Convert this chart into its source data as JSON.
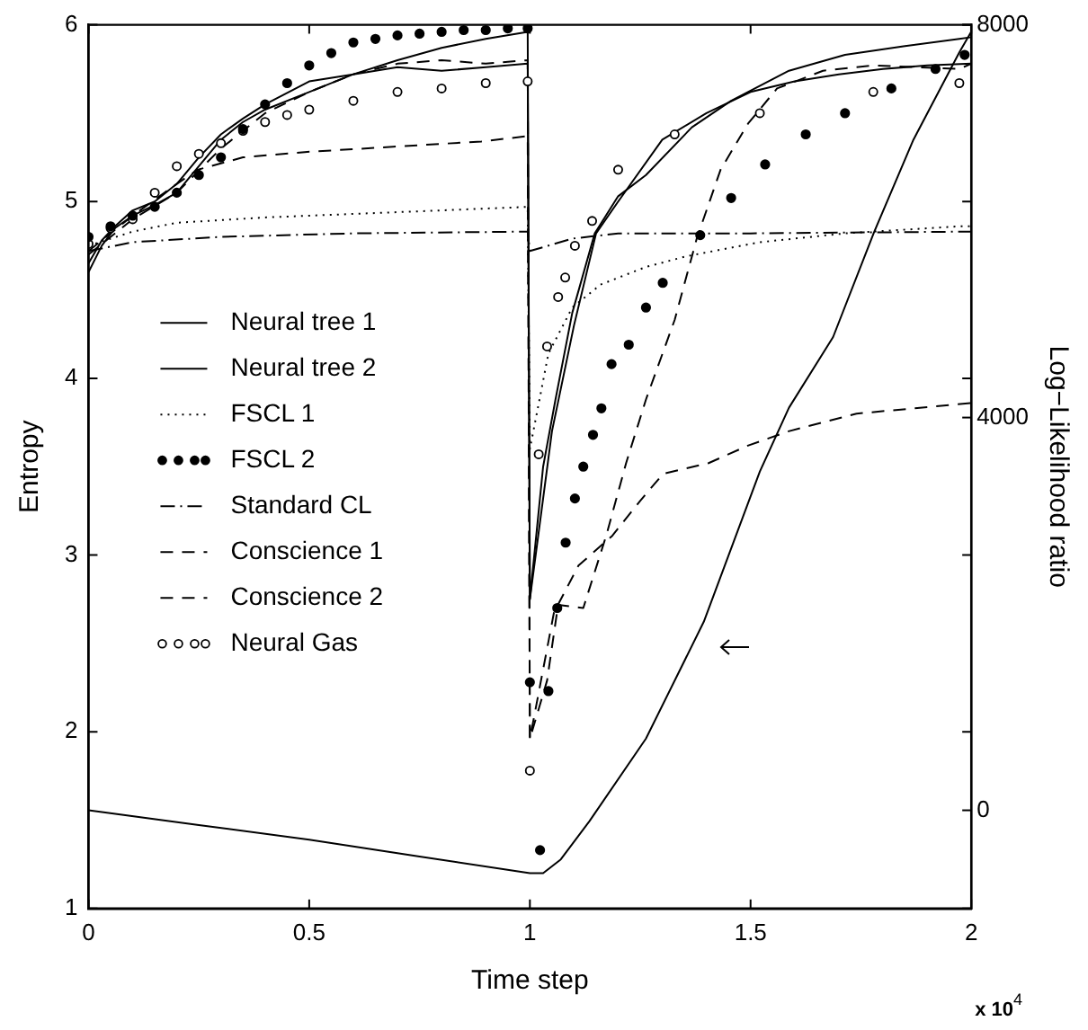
{
  "chart_data": {
    "type": "line",
    "xlabel": "Time step",
    "ylabel": "Entropy",
    "y2label": "Log−Likelihood ratio",
    "xlim": [
      0,
      2
    ],
    "xticks": [
      0,
      0.5,
      1,
      1.5,
      2
    ],
    "ylim": [
      1,
      6
    ],
    "yticks": [
      1,
      2,
      3,
      4,
      5,
      6
    ],
    "y2lim": [
      -1000,
      8000
    ],
    "y2ticks": [
      0,
      4000,
      8000
    ],
    "grid": false,
    "legend": "left",
    "annotations": [
      "x 10$^{4}$"
    ],
    "series": [
      {
        "name": "Neural tree 1",
        "line_style": "solid",
        "color": "#000000",
        "x": [
          0,
          0.03,
          0.06,
          0.1,
          0.15,
          0.2,
          0.25,
          0.3,
          0.35,
          0.4,
          0.5,
          0.6,
          0.7,
          0.8,
          0.9,
          0.995,
          1,
          1.03,
          1.058,
          1.096,
          1.147,
          1.2,
          1.263,
          1.367,
          1.456,
          1.587,
          1.714,
          1.85,
          1.973,
          2
        ],
        "values": [
          4.6,
          4.75,
          4.85,
          4.92,
          4.98,
          5.05,
          5.2,
          5.35,
          5.45,
          5.52,
          5.62,
          5.72,
          5.8,
          5.87,
          5.92,
          5.96,
          2.75,
          3.5,
          3.88,
          4.37,
          4.82,
          5.03,
          5.15,
          5.42,
          5.57,
          5.74,
          5.83,
          5.88,
          5.92,
          5.93
        ]
      },
      {
        "name": "Neural tree 2",
        "line_style": "solid",
        "color": "#000000",
        "x": [
          0,
          0.03,
          0.06,
          0.1,
          0.15,
          0.2,
          0.25,
          0.3,
          0.35,
          0.4,
          0.5,
          0.6,
          0.7,
          0.8,
          0.9,
          0.995,
          1,
          1.05,
          1.1,
          1.15,
          1.2,
          1.3,
          1.4,
          1.5,
          1.6,
          1.7,
          1.8,
          1.9,
          2
        ],
        "values": [
          4.65,
          4.78,
          4.86,
          4.95,
          5.0,
          5.1,
          5.25,
          5.38,
          5.47,
          5.55,
          5.68,
          5.72,
          5.76,
          5.74,
          5.76,
          5.78,
          2.75,
          3.7,
          4.3,
          4.82,
          5.0,
          5.35,
          5.5,
          5.62,
          5.68,
          5.72,
          5.75,
          5.77,
          5.78
        ]
      },
      {
        "name": "FSCL 1",
        "line_style": "dotted",
        "color": "#000000",
        "x": [
          0,
          0.1,
          0.2,
          0.4,
          0.6,
          0.8,
          0.995,
          1,
          1.042,
          1.096,
          1.16,
          1.263,
          1.354,
          1.521,
          1.714,
          1.973,
          2
        ],
        "values": [
          4.75,
          4.83,
          4.88,
          4.91,
          4.93,
          4.95,
          4.97,
          3.6,
          4.14,
          4.4,
          4.53,
          4.63,
          4.69,
          4.77,
          4.82,
          4.86,
          4.86
        ]
      },
      {
        "name": "FSCL 2",
        "type": "scatter",
        "marker": "circle",
        "color": "#000000",
        "x": [
          0,
          0.05,
          0.1,
          0.15,
          0.2,
          0.25,
          0.3,
          0.35,
          0.4,
          0.45,
          0.5,
          0.55,
          0.6,
          0.65,
          0.7,
          0.75,
          0.8,
          0.85,
          0.9,
          0.95,
          0.995,
          1,
          1.023,
          1.042,
          1.062,
          1.081,
          1.102,
          1.121,
          1.143,
          1.162,
          1.185,
          1.224,
          1.263,
          1.301,
          1.386,
          1.456,
          1.533,
          1.625,
          1.714,
          1.819,
          1.919,
          1.985
        ],
        "values": [
          4.8,
          4.86,
          4.92,
          4.97,
          5.05,
          5.15,
          5.25,
          5.41,
          5.55,
          5.67,
          5.77,
          5.84,
          5.9,
          5.92,
          5.94,
          5.95,
          5.96,
          5.97,
          5.97,
          5.98,
          5.98,
          2.28,
          1.33,
          2.23,
          2.7,
          3.07,
          3.32,
          3.5,
          3.68,
          3.83,
          4.08,
          4.19,
          4.4,
          4.54,
          4.81,
          5.02,
          5.21,
          5.38,
          5.5,
          5.64,
          5.75,
          5.83
        ]
      },
      {
        "name": "Standard CL",
        "line_style": "dashdot",
        "color": "#000000",
        "x": [
          0,
          0.1,
          0.3,
          0.6,
          0.995,
          1,
          1.096,
          1.2,
          1.5,
          2
        ],
        "values": [
          4.72,
          4.77,
          4.8,
          4.82,
          4.83,
          4.72,
          4.79,
          4.82,
          4.82,
          4.83
        ]
      },
      {
        "name": "Conscience 1",
        "line_style": "dashed",
        "color": "#000000",
        "x": [
          0,
          0.1,
          0.2,
          0.247,
          0.35,
          0.49,
          0.69,
          0.89,
          0.995,
          1,
          1.039,
          1.064,
          1.11,
          1.187,
          1.251,
          1.302,
          1.405,
          1.495,
          1.586,
          1.74,
          2
        ],
        "values": [
          4.72,
          4.92,
          5.1,
          5.18,
          5.25,
          5.28,
          5.31,
          5.34,
          5.37,
          1.96,
          2.29,
          2.72,
          2.94,
          3.11,
          3.31,
          3.46,
          3.52,
          3.62,
          3.7,
          3.8,
          3.86
        ]
      },
      {
        "name": "Conscience 2",
        "line_style": "dashed",
        "color": "#000000",
        "x": [
          0,
          0.1,
          0.2,
          0.3,
          0.4,
          0.5,
          0.6,
          0.7,
          0.8,
          0.9,
          0.995,
          1,
          1.058,
          1.121,
          1.173,
          1.218,
          1.263,
          1.328,
          1.378,
          1.432,
          1.494,
          1.56,
          1.664,
          1.778,
          1.973,
          2
        ],
        "values": [
          4.7,
          4.9,
          5.05,
          5.3,
          5.5,
          5.62,
          5.72,
          5.78,
          5.8,
          5.78,
          5.8,
          1.96,
          2.72,
          2.7,
          3.11,
          3.52,
          3.88,
          4.33,
          4.79,
          5.18,
          5.44,
          5.64,
          5.74,
          5.77,
          5.75,
          5.78
        ]
      },
      {
        "name": "Neural Gas",
        "type": "scatter",
        "marker": "circle",
        "color": "#000000",
        "x": [
          0,
          0.05,
          0.1,
          0.15,
          0.2,
          0.25,
          0.3,
          0.35,
          0.4,
          0.45,
          0.5,
          0.6,
          0.7,
          0.8,
          0.9,
          0.995,
          1,
          1.02,
          1.039,
          1.064,
          1.08,
          1.102,
          1.141,
          1.2,
          1.328,
          1.521,
          1.778,
          1.973
        ],
        "values": [
          4.76,
          4.85,
          4.9,
          5.05,
          5.2,
          5.27,
          5.33,
          5.4,
          5.45,
          5.49,
          5.52,
          5.57,
          5.62,
          5.64,
          5.67,
          5.68,
          1.78,
          3.57,
          4.18,
          4.46,
          4.57,
          4.75,
          4.89,
          5.18,
          5.38,
          5.5,
          5.62,
          5.67
        ]
      },
      {
        "line_style": "solid",
        "axis": "y2",
        "color": "#000000",
        "x": [
          0,
          0.25,
          0.5,
          0.75,
          1,
          1.03,
          1.07,
          1.135,
          1.263,
          1.394,
          1.521,
          1.587,
          1.687,
          1.78,
          1.869,
          1.973,
          2
        ],
        "values": [
          0,
          -150,
          -300,
          -470,
          -640,
          -640,
          -500,
          -110,
          730,
          1920,
          3450,
          4100,
          4820,
          5890,
          6830,
          7720,
          7930
        ]
      }
    ]
  }
}
